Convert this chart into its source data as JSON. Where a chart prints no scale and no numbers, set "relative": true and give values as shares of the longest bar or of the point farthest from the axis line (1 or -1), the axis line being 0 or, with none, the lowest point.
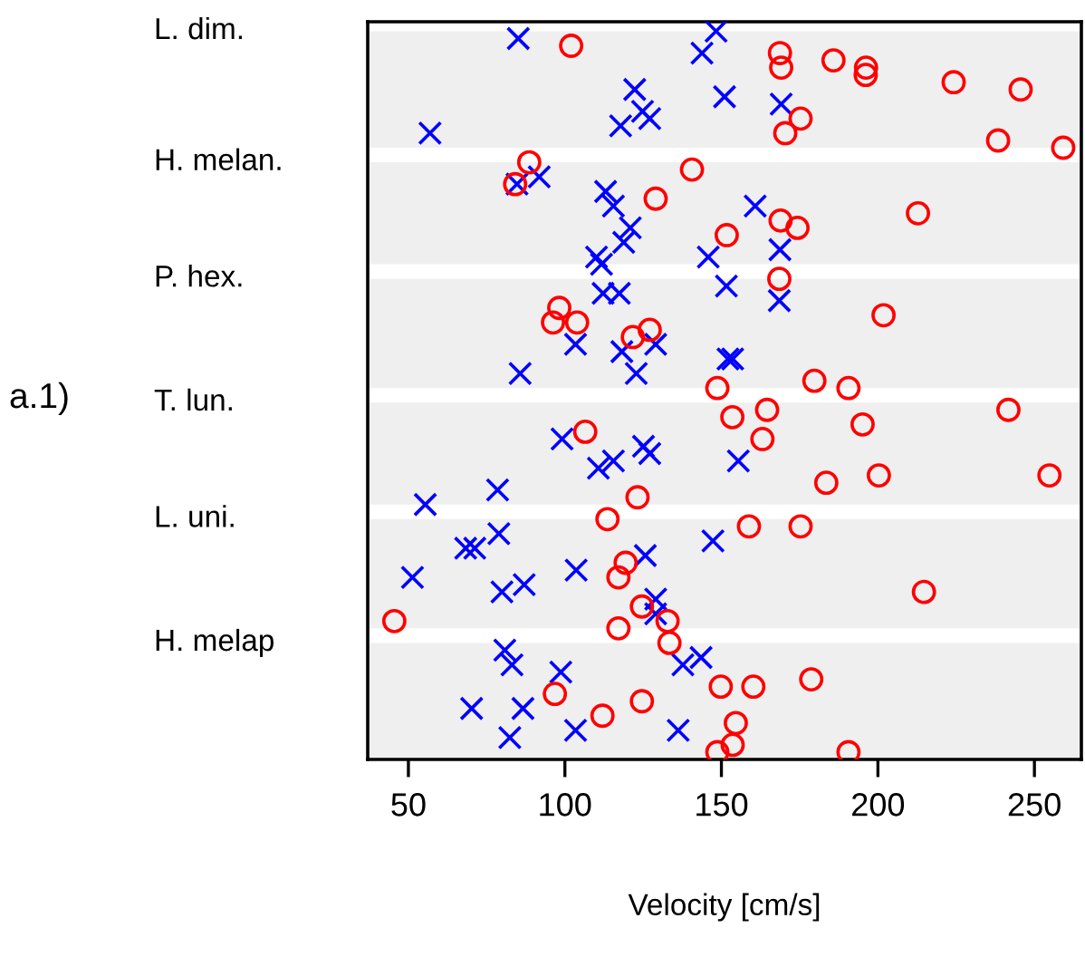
{
  "chart_data": {
    "type": "scatter",
    "relative": true,
    "xlabel": "Velocity [cm/s]",
    "annotations": [
      "a.1)",
      "L. dim.",
      "H. melan.",
      "P. hex.",
      "T. lun.",
      "L. uni.",
      "H. melap"
    ],
    "xlim": [
      37,
      265
    ],
    "xticks": [
      50,
      100,
      150,
      200,
      250
    ],
    "bands": [
      {
        "axis": "y",
        "from": 0.84,
        "to": 1.0,
        "color": "#bebebe"
      },
      {
        "axis": "y",
        "from": 0.68,
        "to": 0.82,
        "color": "#bebebe"
      },
      {
        "axis": "y",
        "from": 0.51,
        "to": 0.66,
        "color": "#bebebe"
      },
      {
        "axis": "y",
        "from": 0.35,
        "to": 0.49,
        "color": "#bebebe"
      },
      {
        "axis": "y",
        "from": 0.18,
        "to": 0.33,
        "color": "#bebebe"
      },
      {
        "axis": "y",
        "from": 0.0,
        "to": 0.16,
        "color": "#bebebe"
      }
    ],
    "series": [
      {
        "color": "#0000ff",
        "marker": "cross",
        "x": [
          85.1,
          148.3,
          143.8,
          122.3,
          124.8,
          127.1,
          117.8,
          151.0,
          169.1,
          56.9,
          84.7,
          91.8,
          113.0,
          115.5,
          120.9,
          118.8,
          110.1,
          111.7,
          160.8,
          145.8,
          168.7,
          151.6,
          112.2,
          117.4,
          168.5,
          103.4,
          118.2,
          129.0,
          122.8,
          85.7,
          152.1,
          153.6,
          99.1,
          115.5,
          110.7,
          125.1,
          127.1,
          155.4,
          78.5,
          55.4,
          78.9,
          68.3,
          71.2,
          147.3,
          125.7,
          103.6,
          51.3,
          79.9,
          87.0,
          129.0,
          129.0,
          80.8,
          83.1,
          98.7,
          137.7,
          143.5,
          70.2,
          86.6,
          82.4,
          103.4,
          136.2
        ],
        "values": [
          0.99,
          1.0,
          0.97,
          0.92,
          0.89,
          0.88,
          0.87,
          0.91,
          0.9,
          0.86,
          0.79,
          0.8,
          0.78,
          0.76,
          0.73,
          0.71,
          0.69,
          0.68,
          0.76,
          0.69,
          0.7,
          0.65,
          0.64,
          0.64,
          0.63,
          0.57,
          0.56,
          0.57,
          0.53,
          0.53,
          0.55,
          0.55,
          0.44,
          0.41,
          0.4,
          0.43,
          0.42,
          0.41,
          0.37,
          0.35,
          0.31,
          0.29,
          0.29,
          0.3,
          0.28,
          0.26,
          0.25,
          0.23,
          0.24,
          0.22,
          0.2,
          0.15,
          0.13,
          0.12,
          0.13,
          0.14,
          0.07,
          0.07,
          0.03,
          0.04,
          0.04
        ]
      },
      {
        "color": "#ff0000",
        "marker": "circle",
        "x": [
          102.0,
          168.7,
          169.1,
          185.8,
          196.2,
          196.1,
          224.2,
          245.6,
          175.3,
          170.4,
          238.4,
          259.2,
          88.6,
          84.1,
          140.6,
          129.0,
          168.9,
          174.3,
          212.8,
          151.7,
          168.5,
          98.2,
          96.2,
          103.9,
          121.7,
          127.1,
          201.8,
          179.7,
          190.6,
          148.7,
          164.6,
          153.5,
          195.1,
          163.1,
          106.5,
          241.7,
          254.8,
          183.5,
          200.3,
          123.2,
          113.6,
          158.8,
          175.3,
          119.4,
          117.1,
          214.7,
          124.6,
          132.8,
          45.5,
          117.1,
          133.4,
          149.8,
          160.2,
          178.7,
          96.8,
          124.6,
          112.0,
          154.6,
          153.6,
          148.7,
          190.6
        ],
        "values": [
          0.98,
          0.97,
          0.95,
          0.96,
          0.95,
          0.94,
          0.93,
          0.92,
          0.88,
          0.86,
          0.85,
          0.84,
          0.82,
          0.79,
          0.81,
          0.77,
          0.74,
          0.73,
          0.75,
          0.72,
          0.66,
          0.62,
          0.6,
          0.6,
          0.58,
          0.59,
          0.61,
          0.52,
          0.51,
          0.51,
          0.48,
          0.47,
          0.46,
          0.44,
          0.45,
          0.48,
          0.39,
          0.38,
          0.39,
          0.36,
          0.33,
          0.32,
          0.32,
          0.27,
          0.25,
          0.23,
          0.21,
          0.19,
          0.19,
          0.18,
          0.16,
          0.1,
          0.1,
          0.11,
          0.09,
          0.08,
          0.06,
          0.05,
          0.02,
          0.01,
          0.01
        ]
      }
    ]
  }
}
